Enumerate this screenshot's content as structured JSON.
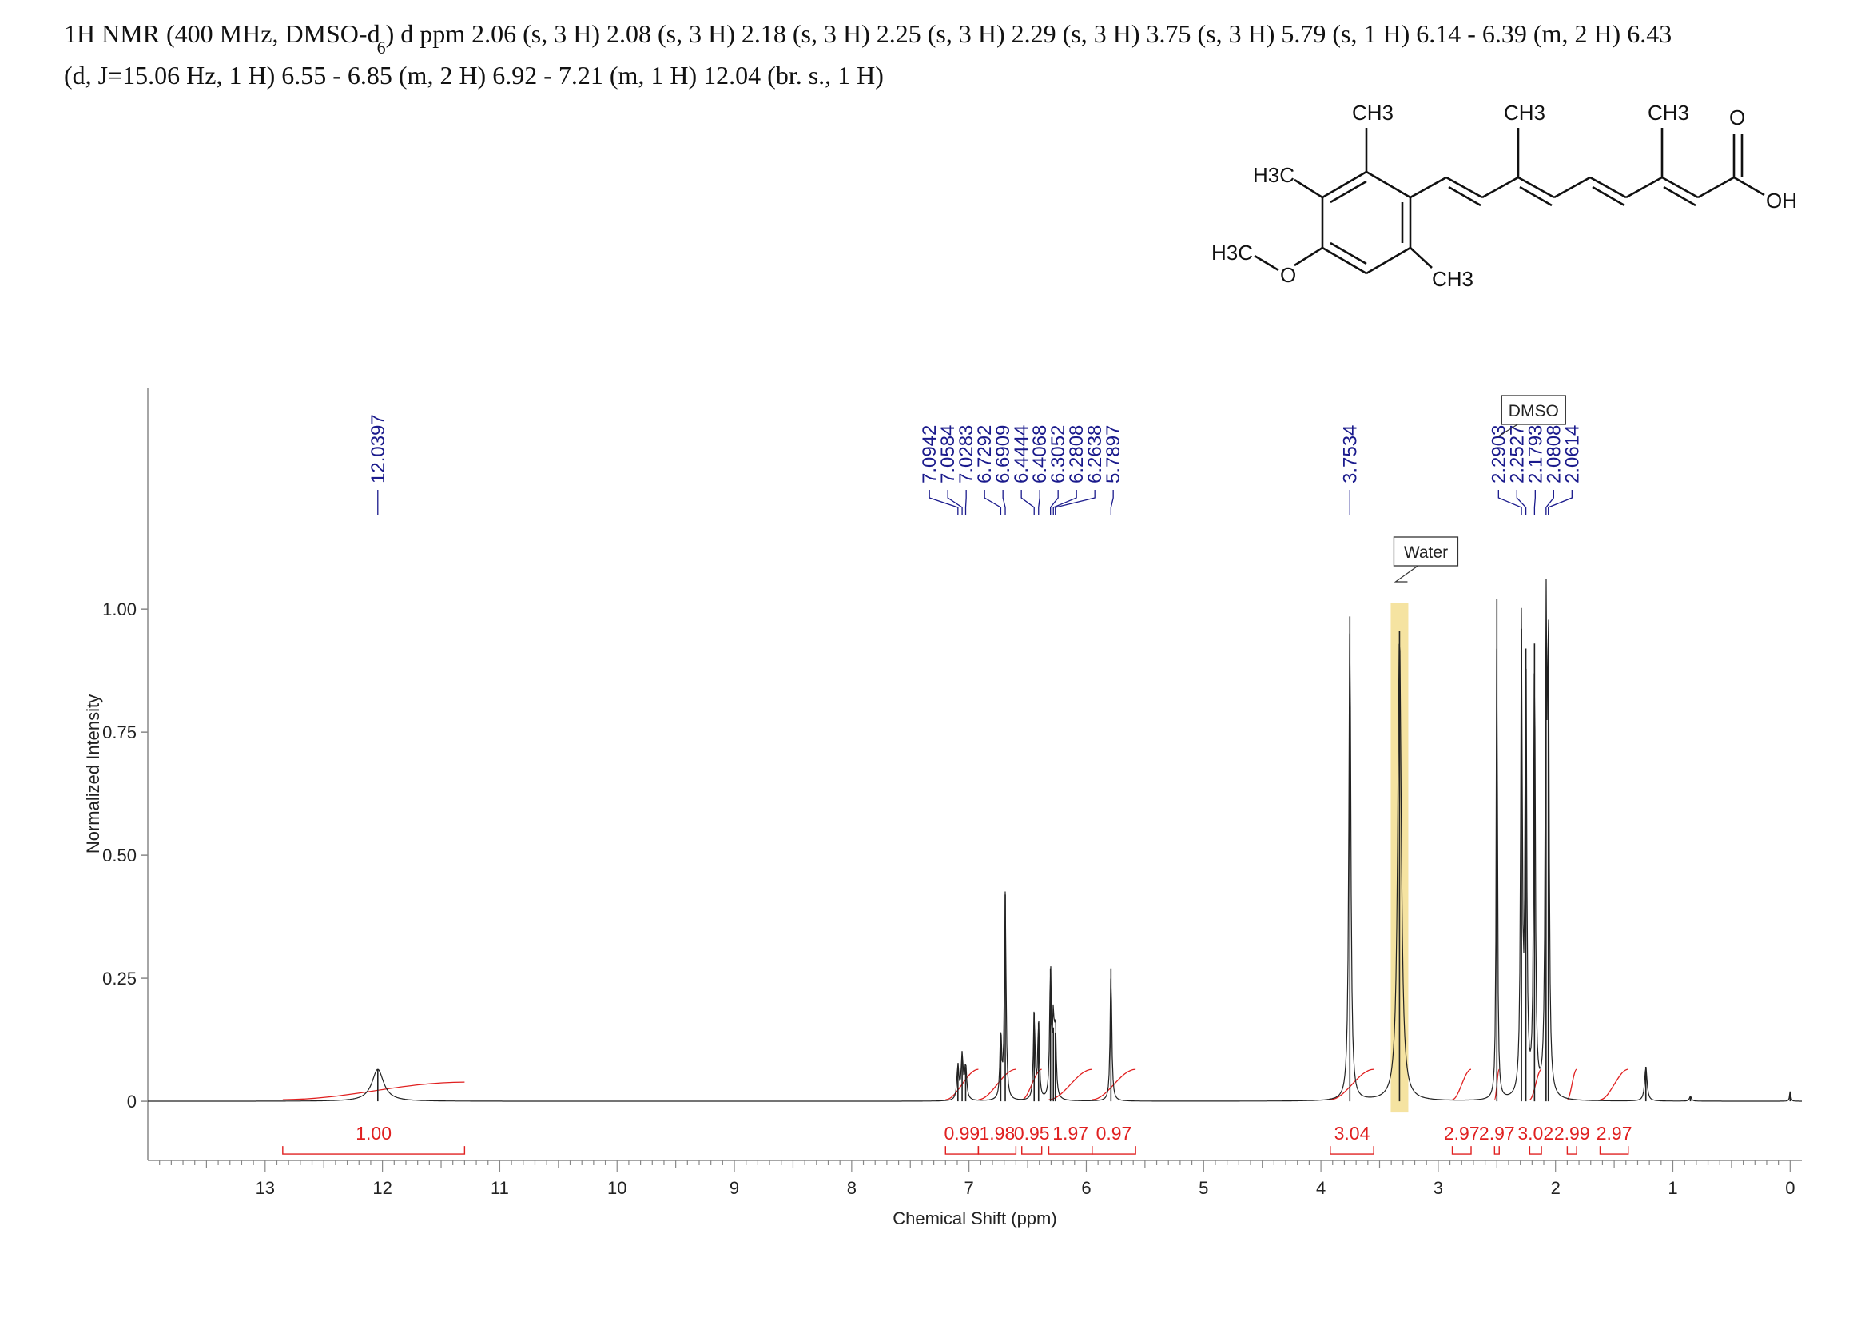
{
  "header": {
    "line1_a": "1H NMR (400 MHz, DMSO-d",
    "line1_sub": "6",
    "line1_b": ") d ppm 2.06 (s, 3 H) 2.08 (s, 3 H) 2.18 (s, 3 H) 2.25 (s, 3 H) 2.29 (s, 3 H) 3.75 (s, 3 H) 5.79 (s, 1 H) 6.14 - 6.39 (m, 2 H) 6.43",
    "line2": "(d, J=15.06 Hz, 1 H) 6.55 - 6.85 (m, 2 H) 6.92 - 7.21 (m, 1 H) 12.04 (br. s., 1 H)"
  },
  "structure": {
    "labels": [
      "CH3",
      "CH3",
      "CH3",
      "H3C",
      "H3C",
      "O",
      "CH3",
      "O",
      "OH"
    ]
  },
  "chart_data": {
    "type": "line",
    "xlabel": "Chemical Shift (ppm)",
    "ylabel": "Normalized Intensity",
    "xlim": [
      14.0,
      -0.1
    ],
    "x_reversed": true,
    "ylim": [
      -0.12,
      1.45
    ],
    "x_ticks": [
      13,
      12,
      11,
      10,
      9,
      8,
      7,
      6,
      5,
      4,
      3,
      2,
      1,
      0
    ],
    "y_ticks": [
      {
        "value": 0,
        "label": "0"
      },
      {
        "value": 0.25,
        "label": "0.25"
      },
      {
        "value": 0.5,
        "label": "0.50"
      },
      {
        "value": 0.75,
        "label": "0.75"
      },
      {
        "value": 1.0,
        "label": "1.00"
      }
    ],
    "spectrum_peaks": [
      {
        "ppm": 12.0397,
        "height": 0.065,
        "width": 0.06
      },
      {
        "ppm": 7.0942,
        "height": 0.07,
        "width": 0.01
      },
      {
        "ppm": 7.0584,
        "height": 0.09,
        "width": 0.01
      },
      {
        "ppm": 7.0283,
        "height": 0.07,
        "width": 0.01
      },
      {
        "ppm": 6.7292,
        "height": 0.14,
        "width": 0.008
      },
      {
        "ppm": 6.6909,
        "height": 0.42,
        "width": 0.008
      },
      {
        "ppm": 6.4444,
        "height": 0.18,
        "width": 0.008
      },
      {
        "ppm": 6.4068,
        "height": 0.16,
        "width": 0.008
      },
      {
        "ppm": 6.3052,
        "height": 0.27,
        "width": 0.008
      },
      {
        "ppm": 6.2808,
        "height": 0.15,
        "width": 0.008
      },
      {
        "ppm": 6.2638,
        "height": 0.14,
        "width": 0.008
      },
      {
        "ppm": 5.7897,
        "height": 0.27,
        "width": 0.008
      },
      {
        "ppm": 3.7534,
        "height": 0.985,
        "width": 0.01
      },
      {
        "ppm": 3.33,
        "height": 0.955,
        "width": 0.018
      },
      {
        "ppm": 2.5,
        "height": 1.02,
        "width": 0.006
      },
      {
        "ppm": 2.2903,
        "height": 0.96,
        "width": 0.008
      },
      {
        "ppm": 2.2527,
        "height": 0.92,
        "width": 0.008
      },
      {
        "ppm": 2.1793,
        "height": 0.93,
        "width": 0.008
      },
      {
        "ppm": 2.0808,
        "height": 0.92,
        "width": 0.008
      },
      {
        "ppm": 2.0614,
        "height": 0.92,
        "width": 0.008
      },
      {
        "ppm": 1.23,
        "height": 0.07,
        "width": 0.012
      },
      {
        "ppm": 0.85,
        "height": 0.01,
        "width": 0.01
      },
      {
        "ppm": 0.0,
        "height": 0.02,
        "width": 0.006
      }
    ],
    "peak_labels": [
      {
        "label": "12.0397"
      },
      {
        "label": "7.0942"
      },
      {
        "label": "7.0584"
      },
      {
        "label": "7.0283"
      },
      {
        "label": "6.7292"
      },
      {
        "label": "6.6909"
      },
      {
        "label": "6.4444"
      },
      {
        "label": "6.4068"
      },
      {
        "label": "6.3052"
      },
      {
        "label": "6.2808"
      },
      {
        "label": "6.2638"
      },
      {
        "label": "5.7897"
      },
      {
        "label": "3.7534"
      },
      {
        "label": "2.2903"
      },
      {
        "label": "2.2527"
      },
      {
        "label": "2.1793"
      },
      {
        "label": "2.0808"
      },
      {
        "label": "2.0614"
      }
    ],
    "integrals": [
      {
        "from": 12.85,
        "to": 11.3,
        "value": "1.00"
      },
      {
        "from": 7.2,
        "to": 6.92,
        "value": "0.99"
      },
      {
        "from": 6.92,
        "to": 6.6,
        "value": "1.98"
      },
      {
        "from": 6.55,
        "to": 6.38,
        "value": "0.95"
      },
      {
        "from": 6.32,
        "to": 5.95,
        "value": "1.97"
      },
      {
        "from": 5.95,
        "to": 5.58,
        "value": "0.97"
      },
      {
        "from": 3.92,
        "to": 3.55,
        "value": "3.04"
      },
      {
        "from": 2.88,
        "to": 2.72,
        "value": "2.97"
      },
      {
        "from": 2.52,
        "to": 2.48,
        "value": "2.97"
      },
      {
        "from": 2.22,
        "to": 2.12,
        "value": "3.02"
      },
      {
        "from": 1.9,
        "to": 1.82,
        "value": "2.99"
      },
      {
        "from": 1.62,
        "to": 1.38,
        "value": "2.97"
      }
    ],
    "annotations": [
      {
        "text": "DMSO",
        "ppm": 2.5
      },
      {
        "text": "Water",
        "ppm": 3.33
      }
    ],
    "colors": {
      "spectrum": "#222222",
      "peak_label": "#1a1a8c",
      "integral": "#e02020",
      "water_highlight": "#f2dc8a"
    }
  }
}
